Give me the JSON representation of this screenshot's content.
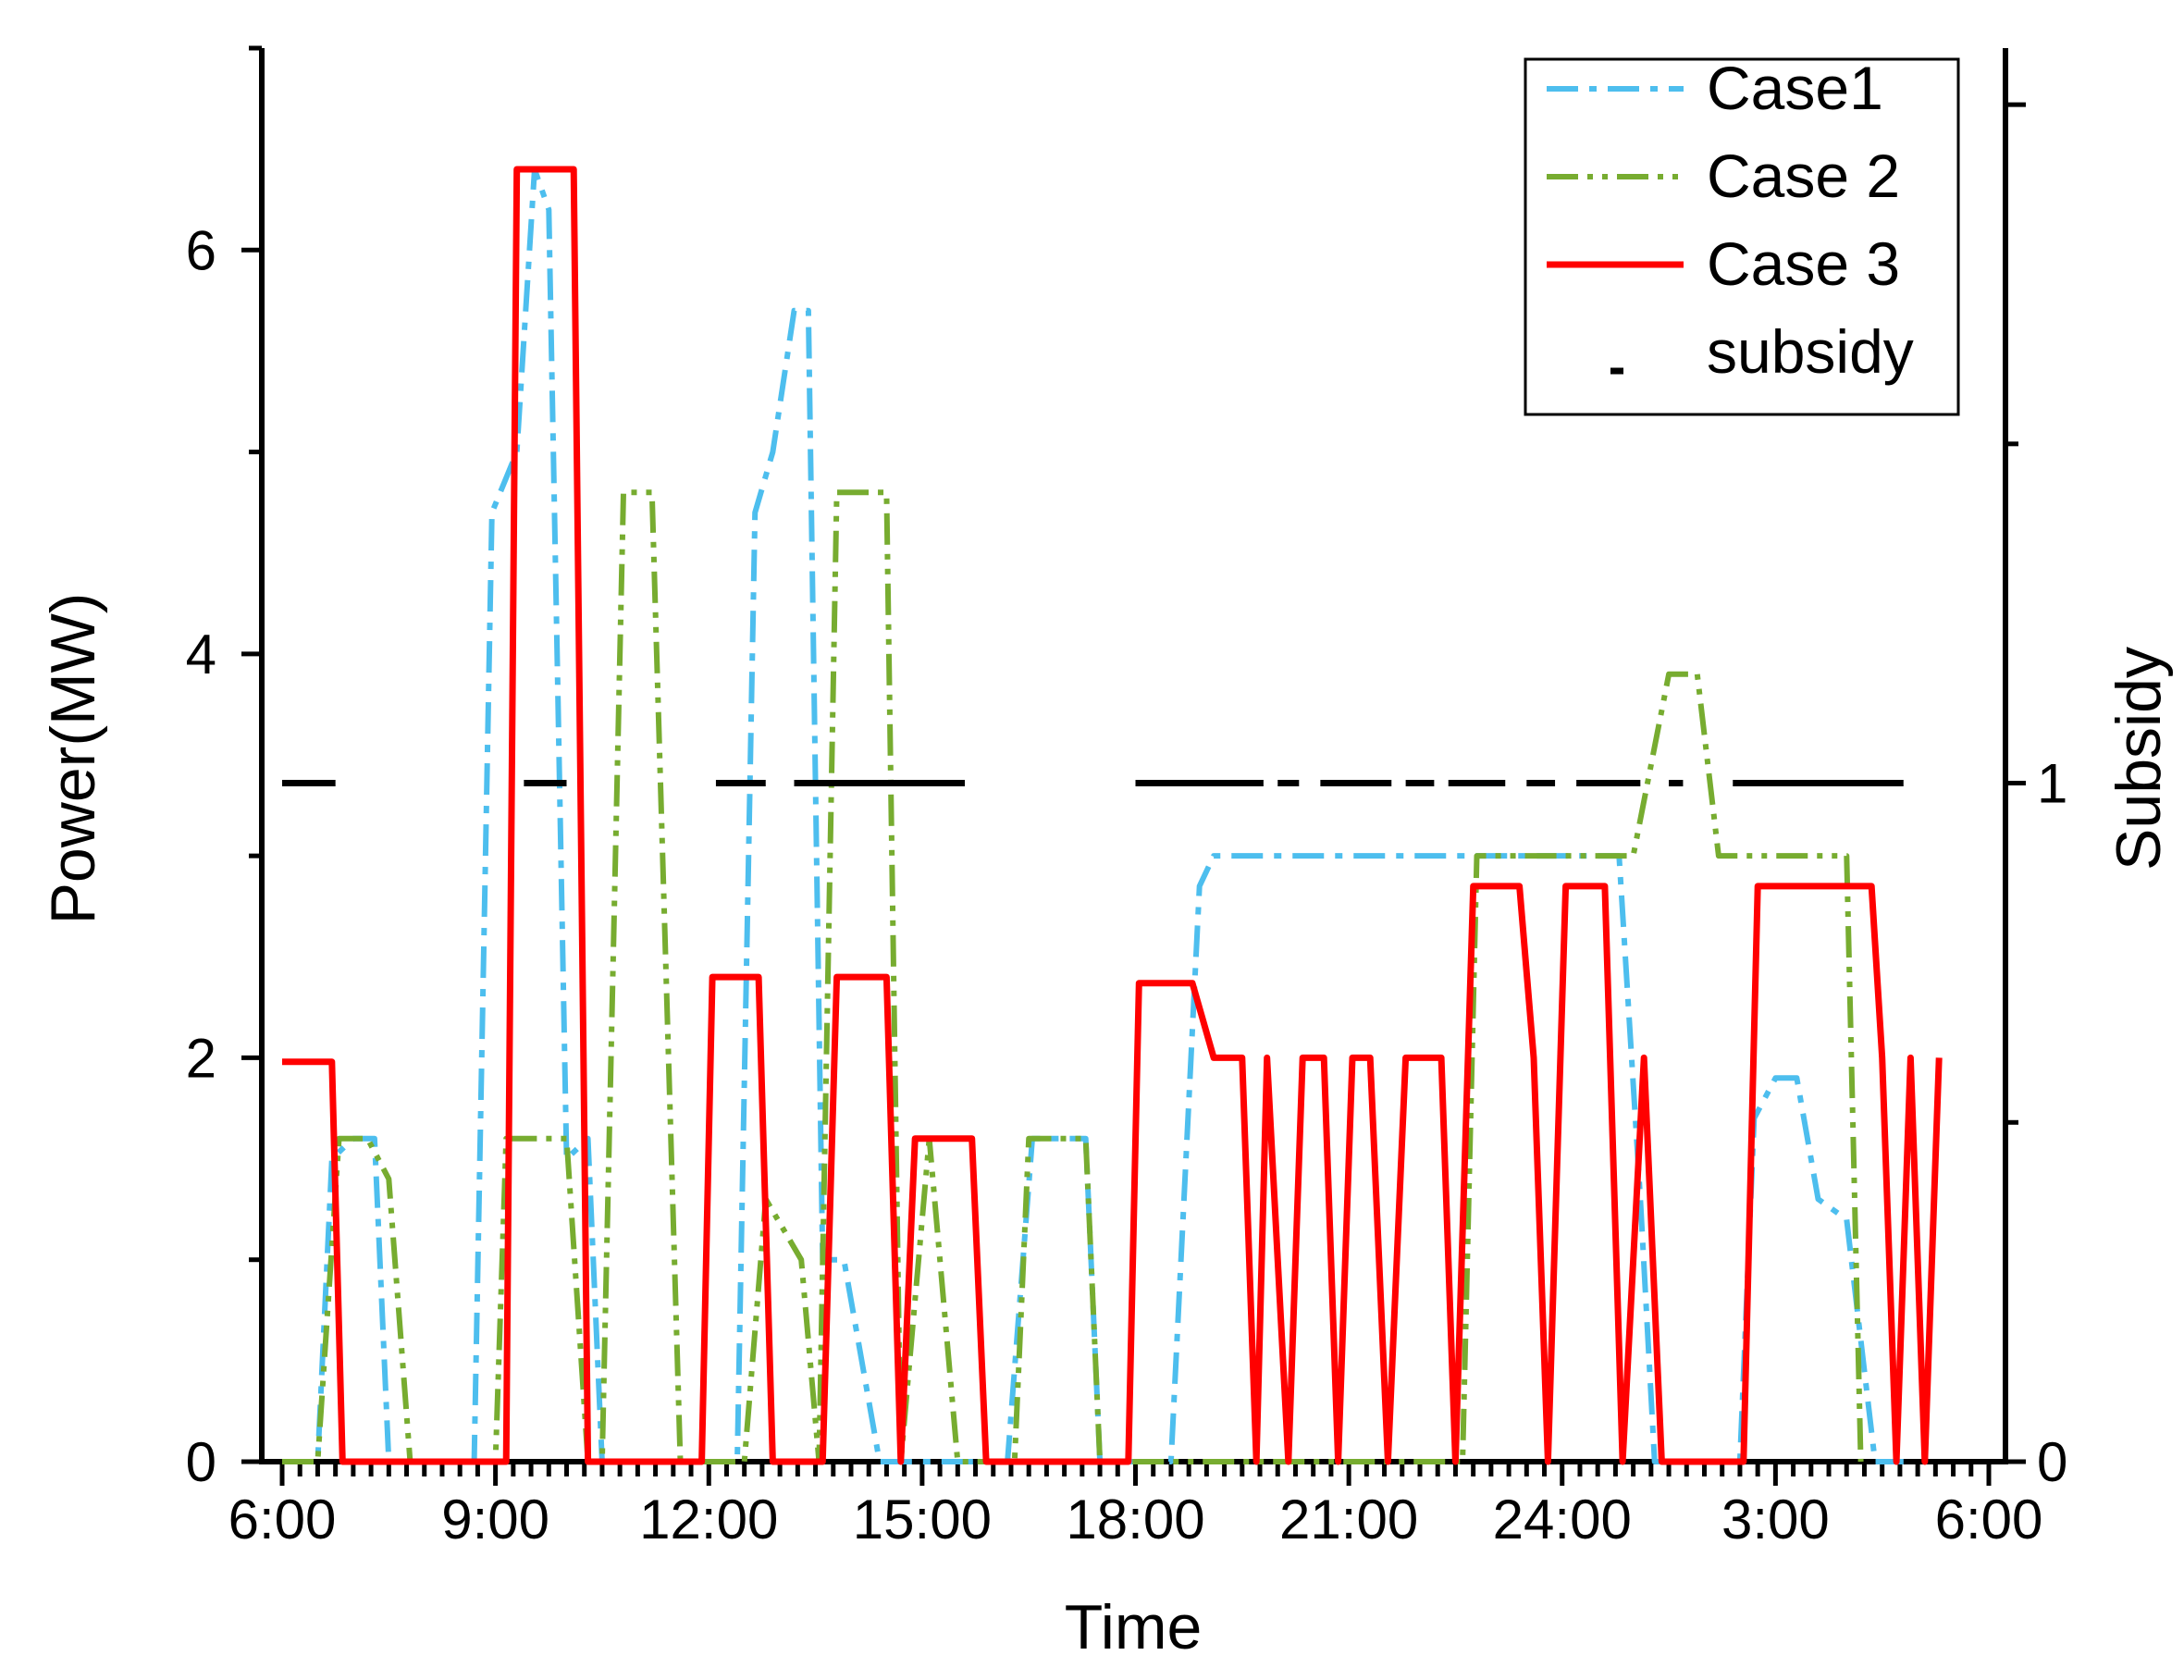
{
  "chart_data": {
    "type": "line",
    "xlabel": "Time",
    "ylabel": "Power(MW)",
    "y2label": "Subsidy",
    "xlim": [
      0,
      24
    ],
    "ylim": [
      0,
      7
    ],
    "y2lim": [
      0,
      2.0833
    ],
    "xticks": [
      {
        "x": 0,
        "label": "6:00"
      },
      {
        "x": 3,
        "label": "9:00"
      },
      {
        "x": 6,
        "label": "12:00"
      },
      {
        "x": 9,
        "label": "15:00"
      },
      {
        "x": 12,
        "label": "18:00"
      },
      {
        "x": 15,
        "label": "21:00"
      },
      {
        "x": 18,
        "label": "24:00"
      },
      {
        "x": 21,
        "label": "3:00"
      },
      {
        "x": 24,
        "label": "6:00"
      }
    ],
    "yticks": [
      {
        "y": 0,
        "label": "0"
      },
      {
        "y": 2,
        "label": "2"
      },
      {
        "y": 4,
        "label": "4"
      },
      {
        "y": 6,
        "label": "6"
      }
    ],
    "y2ticks": [
      {
        "y": 0,
        "label": "0"
      },
      {
        "y": 1,
        "label": "1"
      }
    ],
    "series": [
      {
        "name": "Case1",
        "color": "#4dbeee",
        "dash": "34,12,8,12",
        "points": [
          [
            0,
            0
          ],
          [
            0.5,
            0
          ],
          [
            0.7,
            1.5
          ],
          [
            1.0,
            1.6
          ],
          [
            1.3,
            1.6
          ],
          [
            1.5,
            0
          ],
          [
            2.7,
            0
          ],
          [
            2.95,
            4.7
          ],
          [
            3.3,
            5.0
          ],
          [
            3.55,
            6.4
          ],
          [
            3.75,
            6.2
          ],
          [
            4.0,
            1.5
          ],
          [
            4.3,
            1.6
          ],
          [
            4.5,
            0
          ],
          [
            6.4,
            0
          ],
          [
            6.65,
            4.7
          ],
          [
            6.9,
            5.0
          ],
          [
            7.2,
            5.7
          ],
          [
            7.4,
            5.7
          ],
          [
            7.6,
            1.0
          ],
          [
            7.9,
            1.0
          ],
          [
            8.4,
            0
          ],
          [
            10.2,
            0
          ],
          [
            10.55,
            1.6
          ],
          [
            11.3,
            1.6
          ],
          [
            11.5,
            0
          ],
          [
            12.5,
            0
          ],
          [
            12.9,
            2.85
          ],
          [
            13.1,
            3.0
          ],
          [
            16.8,
            3.0
          ],
          [
            17.5,
            3.0
          ],
          [
            18.8,
            3.0
          ],
          [
            19.1,
            1.3
          ],
          [
            19.3,
            0
          ],
          [
            20.5,
            0
          ],
          [
            20.7,
            1.7
          ],
          [
            21.0,
            1.9
          ],
          [
            21.3,
            1.9
          ],
          [
            21.6,
            1.3
          ],
          [
            22.0,
            1.2
          ],
          [
            22.4,
            0
          ],
          [
            22.8,
            0
          ]
        ]
      },
      {
        "name": "Case 2",
        "color": "#77ac30",
        "dash": "34,10,6,10,6,10",
        "points": [
          [
            0,
            0
          ],
          [
            0.5,
            0
          ],
          [
            0.8,
            1.6
          ],
          [
            1.2,
            1.6
          ],
          [
            1.5,
            1.4
          ],
          [
            1.8,
            0
          ],
          [
            3.0,
            0
          ],
          [
            3.15,
            1.6
          ],
          [
            4.0,
            1.6
          ],
          [
            4.3,
            0
          ],
          [
            4.5,
            0
          ],
          [
            4.8,
            4.8
          ],
          [
            5.2,
            4.8
          ],
          [
            5.6,
            0
          ],
          [
            6.5,
            0
          ],
          [
            6.8,
            1.3
          ],
          [
            7.3,
            1.0
          ],
          [
            7.55,
            0
          ],
          [
            7.8,
            4.8
          ],
          [
            8.5,
            4.8
          ],
          [
            8.7,
            0
          ],
          [
            9.1,
            1.6
          ],
          [
            9.5,
            0
          ],
          [
            10.3,
            0
          ],
          [
            10.5,
            1.6
          ],
          [
            11.3,
            1.6
          ],
          [
            11.5,
            0
          ],
          [
            12.0,
            0
          ],
          [
            12.5,
            0
          ],
          [
            16.6,
            0
          ],
          [
            16.8,
            3.0
          ],
          [
            18.0,
            3.0
          ],
          [
            19.0,
            3.0
          ],
          [
            19.5,
            3.9
          ],
          [
            19.9,
            3.9
          ],
          [
            20.2,
            3.0
          ],
          [
            21.0,
            3.0
          ],
          [
            22.0,
            3.0
          ],
          [
            22.2,
            0
          ]
        ]
      },
      {
        "name": "Case 3",
        "color": "#ff0000",
        "dash": "",
        "points": [
          [
            0,
            1.98
          ],
          [
            0.7,
            1.98
          ],
          [
            0.85,
            0
          ],
          [
            3.15,
            0
          ],
          [
            3.3,
            6.4
          ],
          [
            4.1,
            6.4
          ],
          [
            4.3,
            0
          ],
          [
            5.9,
            0
          ],
          [
            6.05,
            2.4
          ],
          [
            6.7,
            2.4
          ],
          [
            6.9,
            0
          ],
          [
            7.6,
            0
          ],
          [
            7.8,
            2.4
          ],
          [
            8.5,
            2.4
          ],
          [
            8.7,
            0
          ],
          [
            8.9,
            1.6
          ],
          [
            9.7,
            1.6
          ],
          [
            9.9,
            0
          ],
          [
            11.9,
            0
          ],
          [
            12.05,
            2.37
          ],
          [
            12.8,
            2.37
          ],
          [
            13.1,
            2.0
          ],
          [
            13.5,
            2.0
          ],
          [
            13.7,
            0
          ],
          [
            13.85,
            2.0
          ],
          [
            14.15,
            0
          ],
          [
            14.35,
            2.0
          ],
          [
            14.65,
            2.0
          ],
          [
            14.85,
            0
          ],
          [
            15.05,
            2.0
          ],
          [
            15.3,
            2.0
          ],
          [
            15.55,
            0
          ],
          [
            15.8,
            2.0
          ],
          [
            16.3,
            2.0
          ],
          [
            16.5,
            0
          ],
          [
            16.75,
            2.85
          ],
          [
            17.4,
            2.85
          ],
          [
            17.6,
            2.0
          ],
          [
            17.8,
            0
          ],
          [
            18.05,
            2.85
          ],
          [
            18.6,
            2.85
          ],
          [
            18.85,
            0
          ],
          [
            19.15,
            2.0
          ],
          [
            19.4,
            0
          ],
          [
            20.55,
            0
          ],
          [
            20.75,
            2.85
          ],
          [
            22.35,
            2.85
          ],
          [
            22.5,
            2.0
          ],
          [
            22.7,
            0
          ],
          [
            22.9,
            2.0
          ],
          [
            23.1,
            0
          ],
          [
            23.3,
            2.0
          ]
        ]
      },
      {
        "name": "subsidy",
        "axis": "right",
        "color": "#000000",
        "dash": "",
        "segments": [
          [
            0,
            0.75,
            1
          ],
          [
            3.4,
            4.0,
            1
          ],
          [
            6.1,
            6.8,
            1
          ],
          [
            7.2,
            9.6,
            1
          ],
          [
            12.0,
            13.8,
            1
          ],
          [
            14.0,
            14.3,
            1
          ],
          [
            14.6,
            15.6,
            1
          ],
          [
            15.8,
            16.2,
            1
          ],
          [
            16.4,
            17.2,
            1
          ],
          [
            17.5,
            17.9,
            1
          ],
          [
            18.2,
            19.1,
            1
          ],
          [
            19.5,
            19.7,
            1
          ],
          [
            20.4,
            22.8,
            1
          ]
        ]
      }
    ],
    "legend": {
      "position": "top-right",
      "entries": [
        "Case1",
        "Case 2",
        "Case 3",
        "subsidy"
      ]
    }
  }
}
